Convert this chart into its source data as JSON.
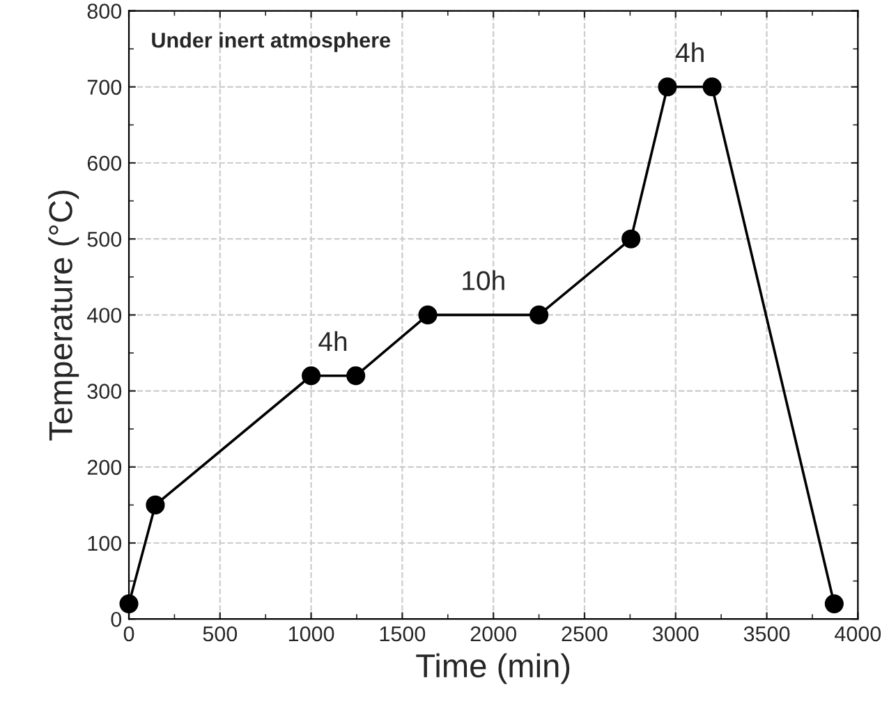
{
  "chart_data": {
    "type": "line",
    "xlabel": "Time (min)",
    "ylabel": "Temperature (°C)",
    "series": [
      {
        "color": "#000000",
        "x": [
          0,
          145,
          1000,
          1245,
          1640,
          2250,
          2755,
          2955,
          3200,
          3870
        ],
        "values": [
          20,
          150,
          320,
          320,
          400,
          400,
          500,
          700,
          700,
          20
        ]
      }
    ],
    "xlim": [
      0,
      4000
    ],
    "xticks": [
      0,
      500,
      1000,
      1500,
      2000,
      2500,
      3000,
      3500,
      4000
    ],
    "ylim": [
      0,
      800
    ],
    "yticks": [
      0,
      100,
      200,
      300,
      400,
      500,
      600,
      700,
      800
    ],
    "grid": true,
    "marker": "circle",
    "line_style": "solid",
    "annotations": [
      "Under inert atmosphere",
      {
        "text": "4h",
        "x": 1120,
        "y": 320
      },
      {
        "text": "10h",
        "x": 1945,
        "y": 400
      },
      {
        "text": "4h",
        "x": 3080,
        "y": 700
      }
    ]
  }
}
